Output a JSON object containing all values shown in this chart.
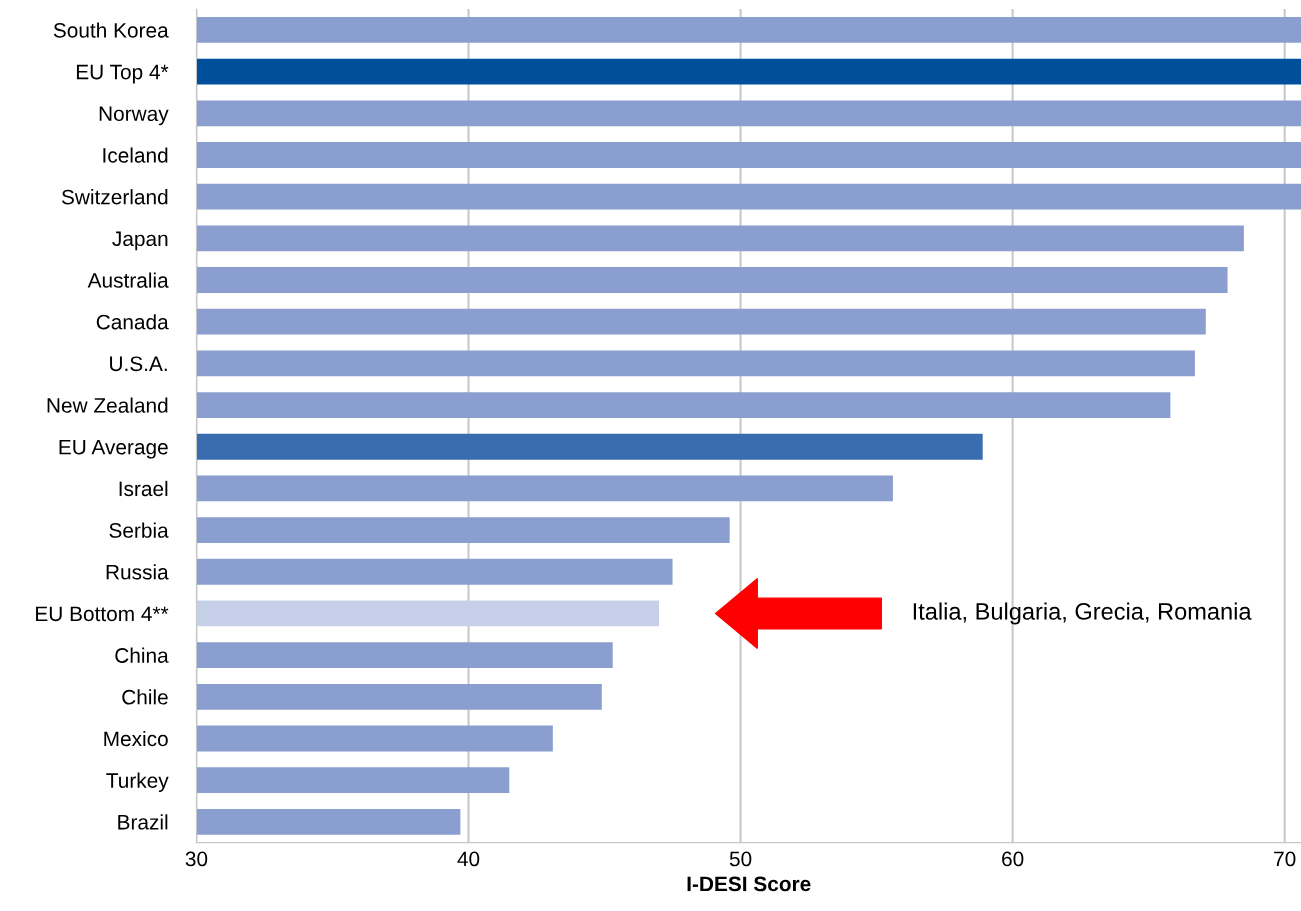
{
  "chart_data": {
    "type": "bar",
    "orientation": "horizontal",
    "xlabel": "I-DESI Score",
    "categories": [
      "South Korea",
      "EU Top 4*",
      "Norway",
      "Iceland",
      "Switzerland",
      "Japan",
      "Australia",
      "Canada",
      "U.S.A.",
      "New Zealand",
      "EU Average",
      "Israel",
      "Serbia",
      "Russia",
      "EU Bottom 4**",
      "China",
      "Chile",
      "Mexico",
      "Turkey",
      "Brazil"
    ],
    "values": [
      70.6,
      70.6,
      70.6,
      70.6,
      70.6,
      68.5,
      67.9,
      67.1,
      66.7,
      65.8,
      58.9,
      55.6,
      49.6,
      47.5,
      47.0,
      45.3,
      44.9,
      43.1,
      41.5,
      39.7
    ],
    "colors": [
      "#8a9fcf",
      "#004f9a",
      "#8a9fcf",
      "#8a9fcf",
      "#8a9fcf",
      "#8a9fcf",
      "#8a9fcf",
      "#8a9fcf",
      "#8a9fcf",
      "#8a9fcf",
      "#3a6cb0",
      "#8a9fcf",
      "#8a9fcf",
      "#8a9fcf",
      "#c5cfe8",
      "#8a9fcf",
      "#8a9fcf",
      "#8a9fcf",
      "#8a9fcf",
      "#8a9fcf"
    ],
    "xlim": [
      30,
      70.6
    ],
    "xticks": [
      30,
      40,
      50,
      60,
      70
    ],
    "grid": "x",
    "annotations": [
      "Italia, Bulgaria, Grecia, Romania"
    ]
  }
}
